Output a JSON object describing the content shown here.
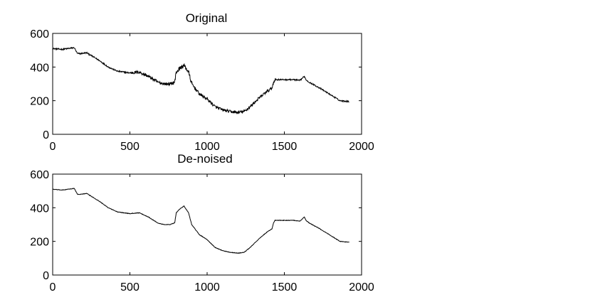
{
  "chart_data": [
    {
      "type": "line",
      "title": "Original",
      "xlabel": "",
      "ylabel": "",
      "xlim": [
        0,
        2000
      ],
      "ylim": [
        0,
        600
      ],
      "xticks": [
        "0",
        "500",
        "1000",
        "1500",
        "2000"
      ],
      "yticks": [
        "0",
        "200",
        "400",
        "600"
      ],
      "grid": false,
      "noisy": true,
      "series": [
        {
          "color": "#000000",
          "x": [
            0,
            60,
            140,
            160,
            180,
            220,
            300,
            360,
            420,
            500,
            560,
            620,
            680,
            720,
            760,
            790,
            800,
            820,
            850,
            880,
            900,
            950,
            1000,
            1050,
            1100,
            1150,
            1200,
            1240,
            1280,
            1330,
            1380,
            1420,
            1430,
            1440,
            1500,
            1560,
            1600,
            1630,
            1640,
            1660,
            1720,
            1800,
            1860,
            1920
          ],
          "y": [
            510,
            505,
            515,
            480,
            480,
            485,
            440,
            400,
            375,
            365,
            370,
            345,
            310,
            300,
            300,
            310,
            370,
            390,
            410,
            370,
            300,
            240,
            210,
            165,
            145,
            135,
            130,
            135,
            165,
            210,
            250,
            275,
            310,
            325,
            325,
            325,
            320,
            345,
            325,
            310,
            280,
            235,
            200,
            195
          ]
        }
      ]
    },
    {
      "type": "line",
      "title": "De-noised",
      "xlabel": "",
      "ylabel": "",
      "xlim": [
        0,
        2000
      ],
      "ylim": [
        0,
        600
      ],
      "xticks": [
        "0",
        "500",
        "1000",
        "1500",
        "2000"
      ],
      "yticks": [
        "0",
        "200",
        "400",
        "600"
      ],
      "grid": false,
      "noisy": false,
      "series": [
        {
          "color": "#000000",
          "x": [
            0,
            60,
            140,
            160,
            180,
            220,
            300,
            360,
            420,
            500,
            560,
            620,
            680,
            720,
            760,
            790,
            800,
            820,
            850,
            880,
            900,
            950,
            1000,
            1050,
            1100,
            1150,
            1200,
            1240,
            1280,
            1330,
            1380,
            1420,
            1430,
            1440,
            1500,
            1560,
            1600,
            1630,
            1640,
            1660,
            1720,
            1800,
            1860,
            1920
          ],
          "y": [
            510,
            505,
            515,
            480,
            480,
            485,
            440,
            400,
            375,
            365,
            370,
            345,
            310,
            300,
            300,
            310,
            370,
            390,
            410,
            370,
            300,
            240,
            210,
            165,
            145,
            135,
            130,
            135,
            165,
            210,
            250,
            275,
            310,
            325,
            325,
            325,
            320,
            345,
            325,
            310,
            280,
            235,
            200,
            195
          ]
        }
      ]
    }
  ]
}
